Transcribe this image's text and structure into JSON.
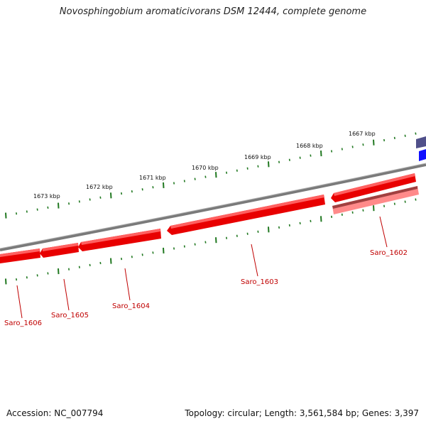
{
  "title": "Novosphingobium aromaticivorans DSM 12444, complete genome",
  "footer": {
    "accession": "Accession: NC_007794",
    "summary": "Topology: circular; Length: 3,561,584 bp; Genes: 3,397"
  },
  "ruler": {
    "ticks": [
      "1673 kbp",
      "1672 kbp",
      "1671 kbp",
      "1670 kbp",
      "1669 kbp",
      "1668 kbp",
      "1667 kbp"
    ]
  },
  "genes": [
    "Saro_1606",
    "Saro_1605",
    "Saro_1604",
    "Saro_1603",
    "Saro_1602"
  ],
  "colors": {
    "forward_gene": "#e80000",
    "forward_gene_light": "#ff8080",
    "reverse_gene": "#e80000",
    "highlight_gene": "#e06060",
    "label": "#c00000",
    "backbone": "#7a7a7a",
    "tick": "#207820",
    "blue_feature": "#1010ff",
    "purple_feature": "#50508a"
  }
}
